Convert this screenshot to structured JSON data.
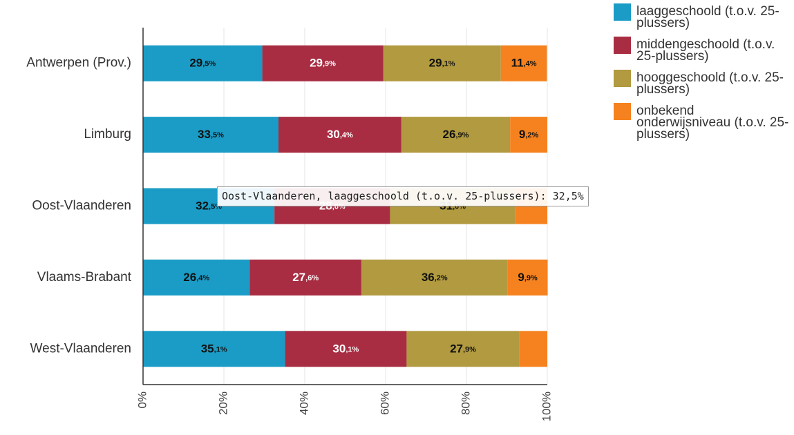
{
  "chart_data": {
    "type": "stacked_bar_horizontal",
    "categories": [
      "Antwerpen (Prov.)",
      "Limburg",
      "Oost-Vlaanderen",
      "Vlaams-Brabant",
      "West-Vlaanderen"
    ],
    "series": [
      {
        "name": "laaggeschoold (t.o.v. 25-plussers)",
        "color": "#1b9cc6",
        "label_color": "#111111",
        "values": [
          29.5,
          33.5,
          32.5,
          26.4,
          35.1
        ],
        "value_labels": [
          "29,5%",
          "33,5%",
          "32,5%",
          "26,4%",
          "35,1%"
        ]
      },
      {
        "name": "middengeschoold (t.o.v. 25-plussers)",
        "color": "#a82d42",
        "label_color": "#ffffff",
        "values": [
          29.9,
          30.4,
          28.6,
          27.6,
          30.1
        ],
        "value_labels": [
          "29,9%",
          "30,4%",
          "28,6%",
          "27,6%",
          "30,1%"
        ]
      },
      {
        "name": "hooggeschoold (t.o.v. 25-plussers)",
        "color": "#b19a3f",
        "label_color": "#111111",
        "values": [
          29.1,
          26.9,
          31.0,
          36.2,
          27.9
        ],
        "value_labels": [
          "29,1%",
          "26,9%",
          "31,0%",
          "36,2%",
          "27,9%"
        ]
      },
      {
        "name": "onbekend onderwijsniveau (t.o.v. 25-plussers)",
        "color": "#f5821f",
        "label_color": "#111111",
        "values": [
          11.4,
          9.2,
          7.9,
          9.9,
          6.9
        ],
        "value_labels": [
          "11,4%",
          "9,2%",
          null,
          "9,9%",
          null
        ]
      }
    ],
    "xlim": [
      0,
      100
    ],
    "xticks": [
      {
        "value": 0,
        "label": "0%"
      },
      {
        "value": 20,
        "label": "20%"
      },
      {
        "value": 40,
        "label": "40%"
      },
      {
        "value": 60,
        "label": "60%"
      },
      {
        "value": 80,
        "label": "80%"
      },
      {
        "value": 100,
        "label": "100%"
      }
    ],
    "grid": true,
    "legend": "right",
    "tooltip": "Oost-Vlaanderen, laaggeschoold (t.o.v. 25-plussers): 32,5%"
  }
}
